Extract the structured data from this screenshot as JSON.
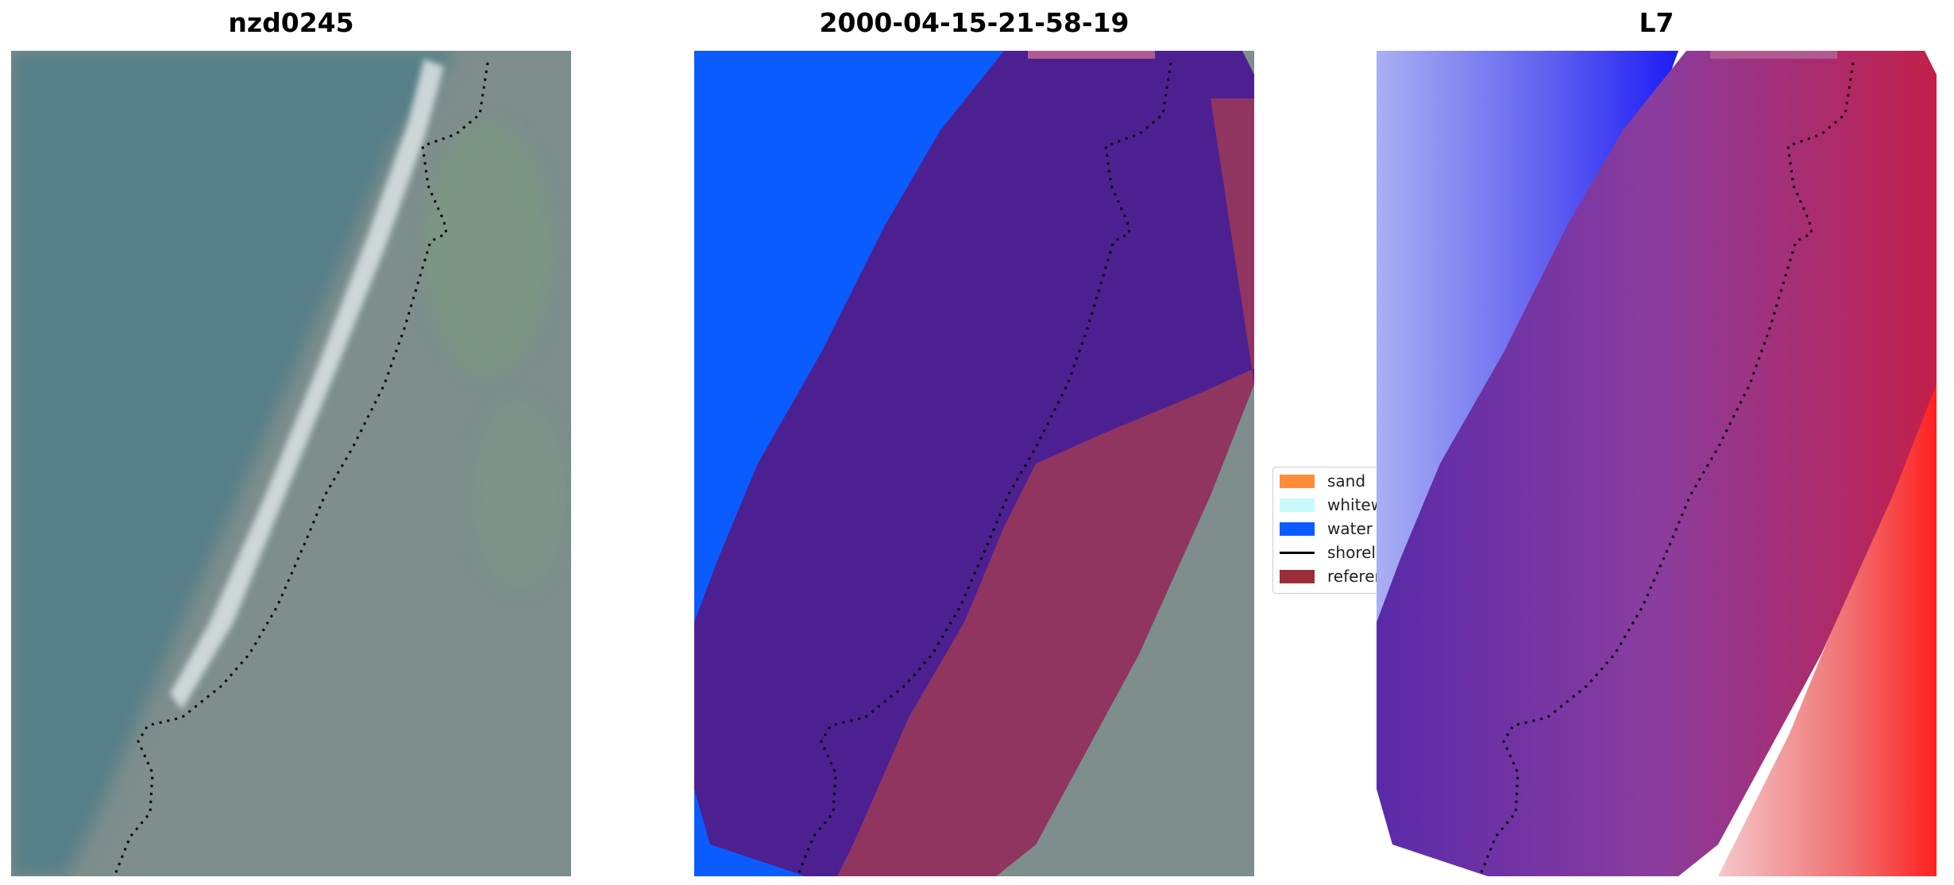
{
  "panels": {
    "image": {
      "title": "nzd0245"
    },
    "classified": {
      "title": "2000-04-15-21-58-19"
    },
    "index": {
      "title": "L7"
    }
  },
  "legend": {
    "items": [
      {
        "label": "sand",
        "color": "#ff8c39",
        "kind": "patch"
      },
      {
        "label": "whitewater",
        "color": "#c8fafa",
        "kind": "patch"
      },
      {
        "label": "water",
        "color": "#0a5cff",
        "kind": "patch"
      },
      {
        "label": "shoreline",
        "color": "#000000",
        "kind": "line"
      },
      {
        "label": "reference",
        "color": "#9b2d3a",
        "kind": "patch"
      }
    ]
  },
  "colors": {
    "ocean": "#567f87",
    "land": "#7d8e8c",
    "vegetation": "#7c9b7f",
    "whitewater_strip": "#d6dfe0",
    "water_class": "#0a5cff",
    "buffer_purple": "#4d2091",
    "reference_overlay": "#93375e",
    "index_blue": "#2f2ff0",
    "index_red": "#e0202a"
  }
}
